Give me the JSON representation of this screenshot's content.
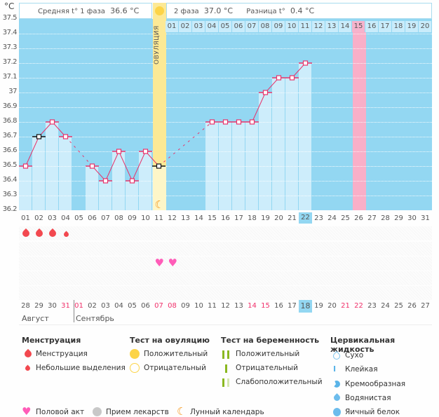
{
  "header": {
    "unit": "°C",
    "phase1_label": "Средняя t° 1 фаза",
    "phase1_value": "36.6 °C",
    "phase2_label": "2 фаза",
    "phase2_value": "37.0 °C",
    "diff_label": "Разница t°",
    "diff_value": "0.4 °C",
    "ovulation_label": "ОВУЛЯЦИЯ"
  },
  "chart_data": {
    "type": "line",
    "title": "",
    "ylabel": "°C",
    "ylim": [
      36.2,
      37.5
    ],
    "yticks": [
      "37.5",
      "37.4",
      "37.3",
      "37.2",
      "37.1",
      "37",
      "36.9",
      "36.8",
      "36.7",
      "36.6",
      "36.5",
      "36.4",
      "36.3",
      "36.2"
    ],
    "x": [
      "01",
      "02",
      "03",
      "04",
      "05",
      "06",
      "07",
      "08",
      "09",
      "10",
      "11",
      "12",
      "13",
      "14",
      "15",
      "16",
      "17",
      "18",
      "19",
      "20",
      "21",
      "22",
      "23",
      "24",
      "25",
      "26",
      "27",
      "28",
      "29",
      "30",
      "31"
    ],
    "series": [
      {
        "name": "Базальная температура",
        "values": [
          36.5,
          36.7,
          36.8,
          36.7,
          null,
          36.5,
          36.4,
          36.6,
          36.4,
          36.6,
          36.5,
          null,
          null,
          null,
          36.8,
          36.8,
          36.8,
          36.8,
          37.0,
          37.1,
          37.1,
          37.2,
          null,
          null,
          null,
          null,
          null,
          null,
          null,
          null,
          null
        ],
        "excluded_days": [
          "02",
          "11"
        ]
      }
    ],
    "ovulation_day": "11",
    "current_day": "22",
    "expected_period_day": "26",
    "grid": true,
    "color_line": "#e8336b"
  },
  "post_ovulation_days": [
    "01",
    "02",
    "03",
    "04",
    "05",
    "06",
    "07",
    "08",
    "09",
    "10",
    "11",
    "12",
    "13",
    "14",
    "15",
    "16",
    "17",
    "18",
    "19",
    "20"
  ],
  "highlight_post_day": "15",
  "menstruation_row": [
    {
      "day": "01",
      "type": "full"
    },
    {
      "day": "02",
      "type": "full"
    },
    {
      "day": "03",
      "type": "full"
    },
    {
      "day": "04",
      "type": "spotting"
    }
  ],
  "intercourse_days": [
    "11",
    "12"
  ],
  "calendar_dates": [
    {
      "d": "28",
      "red": false
    },
    {
      "d": "29",
      "red": false
    },
    {
      "d": "30",
      "red": false
    },
    {
      "d": "31",
      "red": true
    },
    {
      "d": "01",
      "red": true
    },
    {
      "d": "02",
      "red": false
    },
    {
      "d": "03",
      "red": false
    },
    {
      "d": "04",
      "red": false
    },
    {
      "d": "05",
      "red": false
    },
    {
      "d": "06",
      "red": false
    },
    {
      "d": "07",
      "red": true
    },
    {
      "d": "08",
      "red": true
    },
    {
      "d": "09",
      "red": false
    },
    {
      "d": "10",
      "red": false
    },
    {
      "d": "11",
      "red": false
    },
    {
      "d": "12",
      "red": false
    },
    {
      "d": "13",
      "red": false
    },
    {
      "d": "14",
      "red": true
    },
    {
      "d": "15",
      "red": true
    },
    {
      "d": "16",
      "red": false
    },
    {
      "d": "17",
      "red": false
    },
    {
      "d": "18",
      "red": false,
      "selected": true
    },
    {
      "d": "19",
      "red": false
    },
    {
      "d": "20",
      "red": false
    },
    {
      "d": "21",
      "red": true
    },
    {
      "d": "22",
      "red": true
    },
    {
      "d": "23",
      "red": false
    },
    {
      "d": "24",
      "red": false
    },
    {
      "d": "25",
      "red": false
    },
    {
      "d": "26",
      "red": false
    },
    {
      "d": "27",
      "red": false
    }
  ],
  "months": {
    "first": "Август",
    "second": "Сентябрь"
  },
  "legend": {
    "menstruation": {
      "title": "Менструация",
      "items": [
        "Менструация",
        "Небольшие выделения"
      ]
    },
    "ovulation_test": {
      "title": "Тест на овуляцию",
      "items": [
        "Положительный",
        "Отрицательный"
      ]
    },
    "pregnancy_test": {
      "title": "Тест на беременность",
      "items": [
        "Положительный",
        "Отрицательный",
        "Слабоположительный"
      ]
    },
    "cervical_fluid": {
      "title": "Цервикальная жидкость",
      "items": [
        "Сухо",
        "Клейкая",
        "Кремообразная",
        "Водянистая",
        "Яичный белок"
      ]
    },
    "other": [
      "Половой акт",
      "Прием лекарств",
      "Лунный календарь"
    ]
  }
}
